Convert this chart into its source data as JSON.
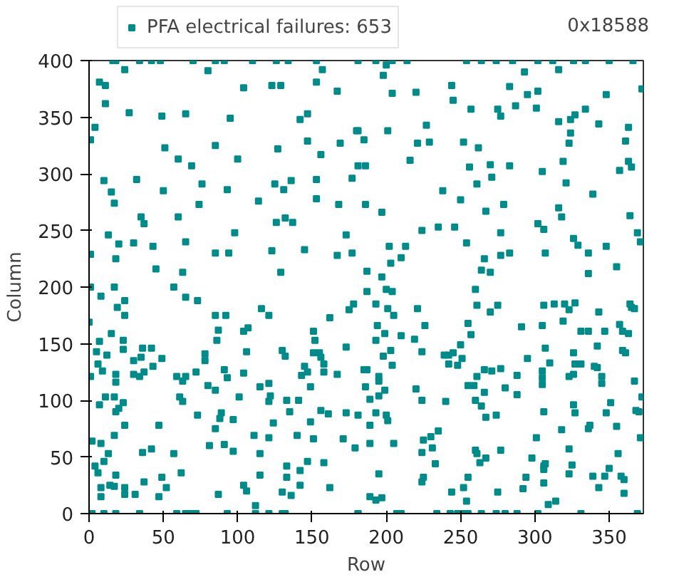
{
  "chart_data": {
    "type": "scatter",
    "xlabel": "Row",
    "ylabel": "Column",
    "annotations": [
      "0x18588"
    ],
    "xlim": [
      0,
      373
    ],
    "ylim": [
      0,
      400
    ],
    "xticks": [
      0,
      50,
      100,
      150,
      200,
      250,
      300,
      350
    ],
    "yticks": [
      0,
      50,
      100,
      150,
      200,
      250,
      300,
      350,
      400
    ],
    "grid": false,
    "legend": "top left",
    "marker": "square",
    "series": [
      {
        "name": "PFA electrical failures: 653",
        "color": "#008b8b",
        "x": [
          16,
          24,
          7,
          11,
          11,
          27,
          4,
          1,
          49,
          65,
          51,
          60,
          69,
          32,
          10,
          15,
          17,
          50,
          74,
          76,
          35,
          37,
          60,
          13,
          20,
          30,
          43,
          65,
          18,
          1,
          45,
          63,
          85,
          94,
          98,
          93,
          100,
          104,
          80,
          95,
          85,
          123,
          129,
          127,
          125,
          131,
          136,
          114,
          126,
          132,
          137,
          123,
          129,
          145,
          153,
          153,
          147,
          142,
          147,
          153,
          157,
          167,
          169,
          156,
          168,
          177,
          173,
          167,
          177,
          181,
          180,
          18,
          34,
          42,
          48,
          70,
          85,
          91,
          110,
          126,
          134,
          153,
          181,
          193,
          204,
          214,
          254,
          264,
          274,
          285,
          302,
          312,
          326,
          334,
          350,
          366,
          200,
          198,
          204,
          220,
          244,
          245,
          257,
          275,
          277,
          283,
          287,
          293,
          295,
          302,
          301,
          316,
          348,
          372,
          316,
          324,
          327,
          334,
          343,
          324,
          323,
          363,
          361,
          363,
          357,
          365,
          319,
          305,
          283,
          270,
          256,
          252,
          262,
          271,
          261,
          238,
          250,
          227,
          221,
          229,
          216,
          201,
          181,
          185,
          186,
          186,
          197,
          224,
          235,
          246,
          254,
          267,
          279,
          277,
          277,
          283,
          266,
          264,
          270,
          302,
          306,
          307,
          316,
          318,
          321,
          339,
          326,
          329,
          336,
          348,
          355,
          364,
          369,
          371,
          336,
          202,
          213,
          210,
          203,
          187,
          197,
          0,
          7,
          5,
          12,
          6,
          9,
          1,
          18,
          18,
          23,
          23,
          15,
          19,
          24,
          24,
          8,
          1,
          17,
          11,
          7,
          17,
          18,
          23,
          20,
          24,
          17,
          8,
          13,
          2,
          10,
          4,
          6,
          8,
          14,
          18,
          17,
          24,
          24,
          31,
          8,
          30,
          35,
          30,
          34,
          37,
          36,
          42,
          43,
          49,
          47,
          42,
          36,
          37,
          47,
          49,
          52,
          57,
          62,
          59,
          63,
          65,
          61,
          63,
          57,
          65,
          73,
          72,
          73,
          78,
          78,
          80,
          81,
          85,
          87,
          86,
          85,
          89,
          88,
          85,
          91,
          93,
          92,
          97,
          97,
          91,
          87,
          101,
          104,
          106,
          104,
          107,
          111,
          115,
          115,
          104,
          106,
          112,
          116,
          121,
          115,
          121,
          122,
          121,
          124,
          121,
          130,
          133,
          133,
          136,
          142,
          142,
          140,
          133,
          135,
          141,
          130,
          132,
          143,
          145,
          147,
          149,
          151,
          152,
          151,
          155,
          156,
          158,
          158,
          167,
          162,
          173,
          175,
          178,
          149,
          151,
          156,
          161,
          173,
          171,
          179,
          147,
          158,
          162,
          2,
          10,
          18,
          34,
          59,
          65,
          69,
          72,
          93,
          112,
          121,
          130,
          132,
          181,
          187,
          200,
          204,
          193,
          201,
          205,
          194,
          199,
          193,
          210,
          203,
          198,
          204,
          185,
          187,
          195,
          195,
          186,
          199,
          195,
          189,
          181,
          193,
          200,
          201,
          189,
          189,
          205,
          195,
          189,
          193,
          197,
          219,
          226,
          221,
          224,
          220,
          224,
          225,
          224,
          230,
          235,
          231,
          233,
          225,
          224,
          239,
          242,
          245,
          250,
          255,
          257,
          251,
          242,
          248,
          240,
          255,
          259,
          261,
          260,
          261,
          270,
          275,
          266,
          271,
          277,
          266,
          260,
          264,
          267,
          274,
          260,
          261,
          263,
          267,
          277,
          255,
          252,
          254,
          244,
          275,
          288,
          288,
          291,
          295,
          280,
          301,
          298,
          294,
          292,
          306,
          313,
          320,
          323,
          327,
          319,
          305,
          307,
          310,
          305,
          305,
          305,
          306,
          318,
          306,
          307,
          306,
          306,
          309,
          314,
          323,
          326,
          326,
          327,
          331,
          326,
          327,
          323,
          325,
          323,
          331,
          336,
          342,
          343,
          347,
          340,
          342,
          345,
          345,
          351,
          348,
          336,
          337,
          355,
          356,
          350,
          347,
          339,
          343,
          358,
          360,
          360,
          357,
          359,
          363,
          359,
          361,
          365,
          364,
          367,
          367,
          368,
          370,
          371,
          372,
          181,
          207,
          210,
          234,
          243,
          248,
          252,
          255,
          264,
          274,
          280,
          288,
          302,
          331,
          369
        ],
        "values": [
          400,
          392,
          381,
          378,
          362,
          354,
          341,
          330,
          351,
          353,
          323,
          313,
          307,
          295,
          294,
          284,
          274,
          285,
          273,
          291,
          262,
          256,
          262,
          246,
          238,
          239,
          236,
          240,
          225,
          229,
          216,
          213,
          230,
          230,
          248,
          286,
          313,
          376,
          391,
          349,
          325,
          378,
          378,
          322,
          291,
          286,
          294,
          276,
          257,
          261,
          257,
          232,
          213,
          233,
          278,
          295,
          329,
          348,
          353,
          381,
          392,
          373,
          327,
          317,
          273,
          296,
          246,
          228,
          230,
          307,
          338,
          400,
          400,
          400,
          400,
          400,
          400,
          400,
          400,
          400,
          400,
          400,
          400,
          400,
          400,
          400,
          400,
          400,
          400,
          400,
          400,
          400,
          400,
          400,
          400,
          400,
          396,
          387,
          371,
          372,
          378,
          365,
          357,
          357,
          351,
          377,
          360,
          390,
          370,
          373,
          358,
          392,
          370,
          375,
          346,
          348,
          352,
          357,
          344,
          336,
          327,
          341,
          329,
          311,
          303,
          306,
          311,
          302,
          307,
          308,
          306,
          328,
          323,
          297,
          291,
          285,
          277,
          343,
          327,
          328,
          312,
          338,
          338,
          330,
          307,
          273,
          266,
          250,
          253,
          253,
          239,
          267,
          273,
          248,
          228,
          230,
          225,
          215,
          213,
          256,
          251,
          230,
          270,
          262,
          292,
          282,
          243,
          237,
          230,
          236,
          218,
          263,
          248,
          240,
          212,
          236,
          236,
          226,
          221,
          214,
          209,
          169,
          152,
          143,
          140,
          132,
          126,
          121,
          123,
          116,
          145,
          153,
          159,
          182,
          188,
          175,
          192,
          200,
          200,
          103,
          96,
          103,
          90,
          98,
          93,
          78,
          69,
          62,
          53,
          64,
          46,
          42,
          36,
          23,
          25,
          34,
          24,
          23,
          17,
          17,
          15,
          135,
          138,
          123,
          121,
          125,
          146,
          146,
          130,
          137,
          78,
          57,
          54,
          28,
          15,
          32,
          23,
          53,
          36,
          121,
          117,
          121,
          103,
          99,
          200,
          191,
          188,
          125,
          87,
          141,
          135,
          113,
          60,
          175,
          162,
          153,
          109,
          89,
          84,
          75,
          127,
          120,
          175,
          83,
          55,
          61,
          17,
          103,
          124,
          143,
          161,
          164,
          69,
          53,
          34,
          25,
          20,
          7,
          181,
          175,
          112,
          115,
          104,
          99,
          80,
          67,
          19,
          32,
          42,
          16,
          38,
          25,
          69,
          100,
          90,
          100,
          144,
          139,
          122,
          130,
          125,
          112,
          161,
          153,
          142,
          142,
          138,
          132,
          125,
          123,
          173,
          147,
          180,
          185,
          81,
          66,
          91,
          88,
          89,
          66,
          58,
          46,
          45,
          23,
          0,
          0,
          0,
          0,
          0,
          0,
          0,
          0,
          0,
          0,
          0,
          0,
          0,
          0,
          196,
          198,
          196,
          185,
          181,
          175,
          166,
          159,
          153,
          157,
          144,
          139,
          131,
          127,
          127,
          121,
          117,
          112,
          109,
          104,
          101,
          87,
          89,
          87,
          82,
          78,
          62,
          62,
          35,
          15,
          12,
          14,
          154,
          166,
          181,
          143,
          110,
          100,
          65,
          54,
          68,
          73,
          58,
          44,
          32,
          28,
          140,
          140,
          142,
          149,
          168,
          158,
          137,
          132,
          131,
          99,
          113,
          113,
          121,
          198,
          184,
          178,
          184,
          127,
          126,
          128,
          107,
          100,
          95,
          85,
          87,
          56,
          53,
          45,
          49,
          56,
          32,
          23,
          11,
          19,
          19,
          122,
          105,
          165,
          137,
          111,
          67,
          49,
          32,
          22,
          184,
          185,
          185,
          180,
          186,
          170,
          166,
          146,
          133,
          126,
          120,
          114,
          90,
          74,
          42,
          44,
          39,
          27,
          8,
          11,
          121,
          123,
          142,
          132,
          132,
          96,
          89,
          57,
          43,
          35,
          161,
          161,
          148,
          178,
          161,
          130,
          129,
          121,
          115,
          98,
          89,
          75,
          78,
          77,
          53,
          40,
          33,
          33,
          23,
          33,
          30,
          18,
          167,
          161,
          159,
          144,
          142,
          182,
          185,
          181,
          117,
          91,
          90,
          67,
          103,
          0,
          0,
          0,
          0,
          0,
          0,
          0,
          0,
          0,
          0,
          0,
          0,
          0,
          0,
          0
        ]
      }
    ]
  }
}
